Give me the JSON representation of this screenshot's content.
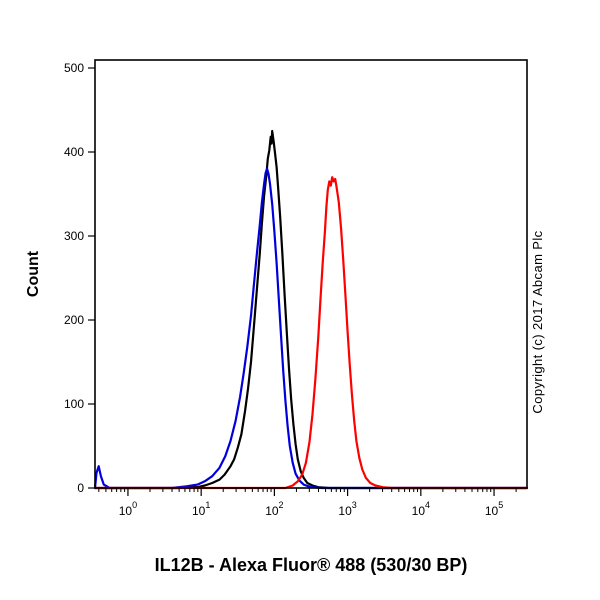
{
  "chart_data": {
    "type": "line",
    "title": "",
    "xlabel": "IL12B - Alexa Fluor® 488 (530/30 BP)",
    "ylabel": "Count",
    "copyright": "Copyright (c) 2017 Abcam Plc",
    "x_scale": "log",
    "x_range_log10": [
      -0.45,
      5.45
    ],
    "x_tick_exponents": [
      0,
      1,
      2,
      3,
      4,
      5
    ],
    "y_range": [
      0,
      500
    ],
    "y_ticks": [
      0,
      100,
      200,
      300,
      400,
      500
    ],
    "grid": false,
    "legend": "none",
    "series": [
      {
        "name": "black",
        "color": "#000000",
        "peak_x": 93,
        "peak_count": 425,
        "points": [
          [
            -0.45,
            0
          ],
          [
            0.7,
            0
          ],
          [
            0.85,
            2
          ],
          [
            0.95,
            1
          ],
          [
            1.05,
            3
          ],
          [
            1.15,
            6
          ],
          [
            1.25,
            10
          ],
          [
            1.32,
            16
          ],
          [
            1.4,
            26
          ],
          [
            1.45,
            34
          ],
          [
            1.5,
            48
          ],
          [
            1.55,
            64
          ],
          [
            1.6,
            92
          ],
          [
            1.64,
            118
          ],
          [
            1.68,
            150
          ],
          [
            1.72,
            192
          ],
          [
            1.76,
            235
          ],
          [
            1.8,
            278
          ],
          [
            1.83,
            315
          ],
          [
            1.86,
            348
          ],
          [
            1.89,
            372
          ],
          [
            1.91,
            392
          ],
          [
            1.93,
            402
          ],
          [
            1.95,
            418
          ],
          [
            1.96,
            410
          ],
          [
            1.97,
            425
          ],
          [
            1.99,
            412
          ],
          [
            2.01,
            398
          ],
          [
            2.03,
            382
          ],
          [
            2.05,
            358
          ],
          [
            2.08,
            322
          ],
          [
            2.11,
            278
          ],
          [
            2.14,
            230
          ],
          [
            2.17,
            185
          ],
          [
            2.2,
            142
          ],
          [
            2.23,
            105
          ],
          [
            2.26,
            76
          ],
          [
            2.29,
            52
          ],
          [
            2.32,
            34
          ],
          [
            2.36,
            20
          ],
          [
            2.4,
            12
          ],
          [
            2.45,
            6
          ],
          [
            2.52,
            3
          ],
          [
            2.6,
            1
          ],
          [
            2.75,
            0
          ],
          [
            5.45,
            0
          ]
        ]
      },
      {
        "name": "blue",
        "color": "#0000dd",
        "peak_x": 80,
        "peak_count": 380,
        "points": [
          [
            -0.45,
            0
          ],
          [
            -0.43,
            18
          ],
          [
            -0.4,
            26
          ],
          [
            -0.37,
            14
          ],
          [
            -0.33,
            4
          ],
          [
            -0.25,
            0
          ],
          [
            0.6,
            0
          ],
          [
            0.8,
            2
          ],
          [
            0.95,
            4
          ],
          [
            1.05,
            8
          ],
          [
            1.15,
            14
          ],
          [
            1.25,
            24
          ],
          [
            1.33,
            38
          ],
          [
            1.4,
            56
          ],
          [
            1.47,
            80
          ],
          [
            1.53,
            108
          ],
          [
            1.58,
            136
          ],
          [
            1.63,
            168
          ],
          [
            1.68,
            205
          ],
          [
            1.72,
            242
          ],
          [
            1.76,
            278
          ],
          [
            1.8,
            312
          ],
          [
            1.83,
            340
          ],
          [
            1.86,
            362
          ],
          [
            1.88,
            375
          ],
          [
            1.9,
            380
          ],
          [
            1.92,
            374
          ],
          [
            1.94,
            362
          ],
          [
            1.97,
            338
          ],
          [
            2.0,
            305
          ],
          [
            2.03,
            268
          ],
          [
            2.06,
            225
          ],
          [
            2.09,
            182
          ],
          [
            2.12,
            140
          ],
          [
            2.15,
            104
          ],
          [
            2.18,
            74
          ],
          [
            2.21,
            50
          ],
          [
            2.25,
            30
          ],
          [
            2.29,
            17
          ],
          [
            2.34,
            9
          ],
          [
            2.4,
            4
          ],
          [
            2.5,
            1
          ],
          [
            2.65,
            0
          ],
          [
            5.45,
            0
          ]
        ]
      },
      {
        "name": "red",
        "color": "#ff0000",
        "peak_x": 620,
        "peak_count": 370,
        "points": [
          [
            -0.45,
            0
          ],
          [
            2.15,
            0
          ],
          [
            2.25,
            3
          ],
          [
            2.32,
            8
          ],
          [
            2.38,
            16
          ],
          [
            2.43,
            30
          ],
          [
            2.48,
            55
          ],
          [
            2.52,
            88
          ],
          [
            2.56,
            130
          ],
          [
            2.6,
            180
          ],
          [
            2.63,
            225
          ],
          [
            2.66,
            268
          ],
          [
            2.69,
            305
          ],
          [
            2.71,
            335
          ],
          [
            2.73,
            355
          ],
          [
            2.75,
            365
          ],
          [
            2.77,
            360
          ],
          [
            2.79,
            370
          ],
          [
            2.81,
            365
          ],
          [
            2.83,
            368
          ],
          [
            2.85,
            358
          ],
          [
            2.88,
            340
          ],
          [
            2.91,
            310
          ],
          [
            2.94,
            272
          ],
          [
            2.97,
            230
          ],
          [
            3.0,
            186
          ],
          [
            3.03,
            146
          ],
          [
            3.06,
            110
          ],
          [
            3.09,
            80
          ],
          [
            3.12,
            56
          ],
          [
            3.16,
            36
          ],
          [
            3.2,
            22
          ],
          [
            3.25,
            12
          ],
          [
            3.31,
            6
          ],
          [
            3.38,
            3
          ],
          [
            3.48,
            1
          ],
          [
            3.6,
            0
          ],
          [
            5.45,
            0
          ]
        ]
      }
    ]
  }
}
